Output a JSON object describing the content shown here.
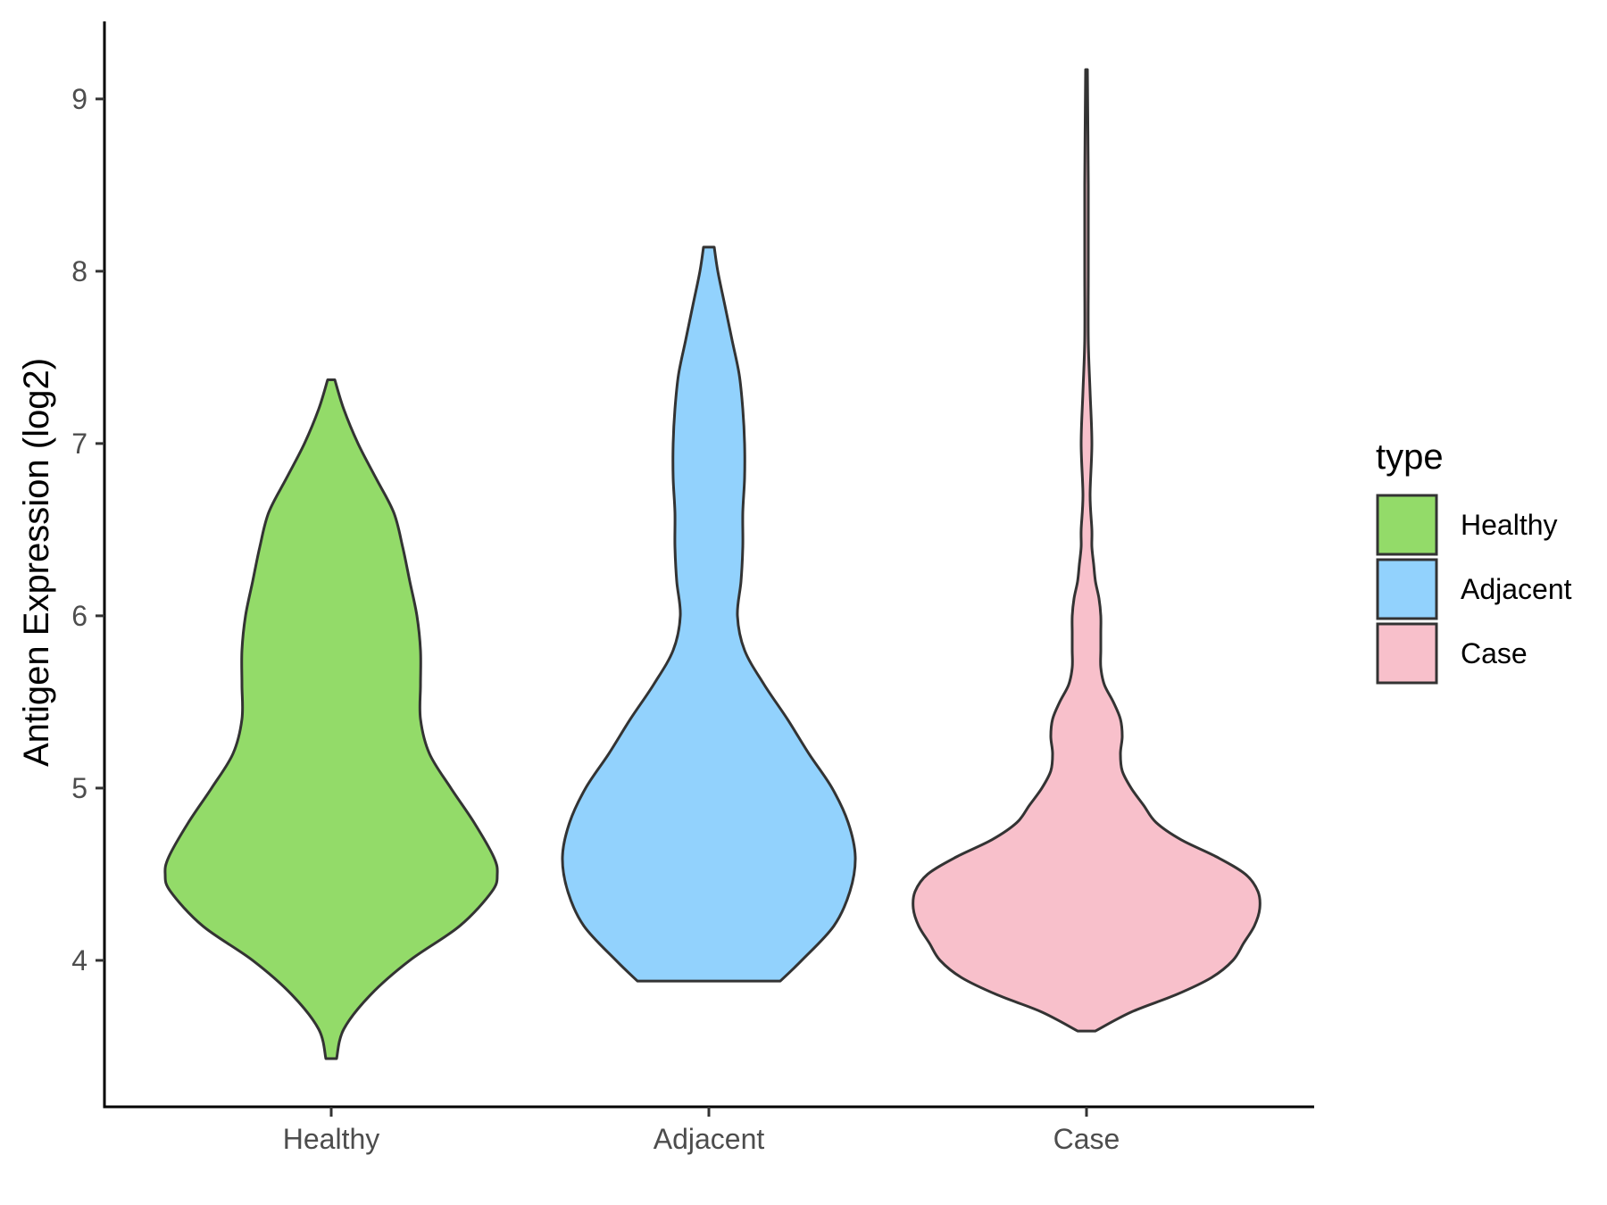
{
  "chart_data": {
    "type": "violin",
    "title": "",
    "xlabel": "",
    "ylabel": "Antigen Expression (log2)",
    "ylim": [
      3.15,
      9.45
    ],
    "y_ticks": [
      4,
      5,
      6,
      7,
      8,
      9
    ],
    "categories": [
      "Healthy",
      "Adjacent",
      "Case"
    ],
    "grid": false,
    "legend": {
      "title": "type",
      "position": "right",
      "entries": [
        "Healthy",
        "Adjacent",
        "Case"
      ]
    },
    "series": [
      {
        "name": "Healthy",
        "color": "#93db69",
        "profile": [
          [
            3.43,
            0.03
          ],
          [
            3.6,
            0.07
          ],
          [
            3.8,
            0.22
          ],
          [
            4.0,
            0.44
          ],
          [
            4.2,
            0.72
          ],
          [
            4.4,
            0.9
          ],
          [
            4.5,
            0.93
          ],
          [
            4.6,
            0.91
          ],
          [
            4.8,
            0.8
          ],
          [
            5.0,
            0.67
          ],
          [
            5.2,
            0.55
          ],
          [
            5.4,
            0.5
          ],
          [
            5.6,
            0.5
          ],
          [
            5.8,
            0.5
          ],
          [
            6.0,
            0.48
          ],
          [
            6.2,
            0.44
          ],
          [
            6.4,
            0.4
          ],
          [
            6.6,
            0.35
          ],
          [
            6.8,
            0.25
          ],
          [
            7.0,
            0.15
          ],
          [
            7.2,
            0.07
          ],
          [
            7.37,
            0.02
          ]
        ]
      },
      {
        "name": "Adjacent",
        "color": "#92d2fd",
        "profile": [
          [
            3.88,
            0.4
          ],
          [
            4.0,
            0.52
          ],
          [
            4.2,
            0.7
          ],
          [
            4.4,
            0.79
          ],
          [
            4.6,
            0.82
          ],
          [
            4.8,
            0.78
          ],
          [
            5.0,
            0.69
          ],
          [
            5.2,
            0.56
          ],
          [
            5.4,
            0.44
          ],
          [
            5.6,
            0.31
          ],
          [
            5.8,
            0.2
          ],
          [
            6.0,
            0.16
          ],
          [
            6.2,
            0.18
          ],
          [
            6.4,
            0.19
          ],
          [
            6.6,
            0.19
          ],
          [
            6.8,
            0.2
          ],
          [
            7.0,
            0.2
          ],
          [
            7.2,
            0.19
          ],
          [
            7.4,
            0.17
          ],
          [
            7.6,
            0.13
          ],
          [
            7.8,
            0.09
          ],
          [
            8.0,
            0.05
          ],
          [
            8.14,
            0.03
          ]
        ]
      },
      {
        "name": "Case",
        "color": "#f8c0cb",
        "profile": [
          [
            3.59,
            0.05
          ],
          [
            3.7,
            0.25
          ],
          [
            3.8,
            0.5
          ],
          [
            3.9,
            0.7
          ],
          [
            4.0,
            0.82
          ],
          [
            4.1,
            0.88
          ],
          [
            4.2,
            0.94
          ],
          [
            4.3,
            0.97
          ],
          [
            4.4,
            0.96
          ],
          [
            4.5,
            0.89
          ],
          [
            4.6,
            0.73
          ],
          [
            4.7,
            0.53
          ],
          [
            4.8,
            0.39
          ],
          [
            4.9,
            0.32
          ],
          [
            5.0,
            0.25
          ],
          [
            5.1,
            0.2
          ],
          [
            5.2,
            0.19
          ],
          [
            5.3,
            0.2
          ],
          [
            5.4,
            0.19
          ],
          [
            5.5,
            0.15
          ],
          [
            5.6,
            0.1
          ],
          [
            5.7,
            0.08
          ],
          [
            5.8,
            0.08
          ],
          [
            5.9,
            0.08
          ],
          [
            6.0,
            0.08
          ],
          [
            6.1,
            0.07
          ],
          [
            6.2,
            0.05
          ],
          [
            6.3,
            0.04
          ],
          [
            6.4,
            0.03
          ],
          [
            6.5,
            0.03
          ],
          [
            6.7,
            0.02
          ],
          [
            7.0,
            0.03
          ],
          [
            7.3,
            0.02
          ],
          [
            7.6,
            0.01
          ],
          [
            8.0,
            0.01
          ],
          [
            8.5,
            0.01
          ],
          [
            9.17,
            0.005
          ]
        ]
      }
    ]
  }
}
